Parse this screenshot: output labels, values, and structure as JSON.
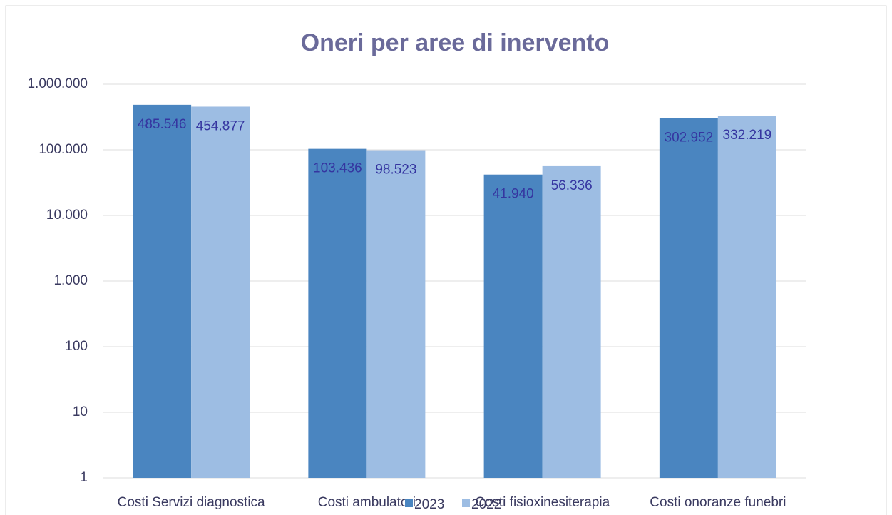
{
  "chart_data": {
    "type": "bar",
    "title": "Oneri per aree di inervento",
    "categories": [
      "Costi Servizi diagnostica",
      "Costi ambulatori",
      "Costi fisioxinesiterapia",
      "Costi onoranze funebri"
    ],
    "series": [
      {
        "name": "2023",
        "color": "#4a85c0",
        "values": [
          485546,
          103436,
          41940,
          302952
        ],
        "value_labels": [
          "485.546",
          "103.436",
          "41.940",
          "302.952"
        ]
      },
      {
        "name": "2022",
        "color": "#9dbde3",
        "values": [
          454877,
          98523,
          56336,
          332219
        ],
        "value_labels": [
          "454.877",
          "98.523",
          "56.336",
          "332.219"
        ]
      }
    ],
    "ylim": [
      1,
      1000000
    ],
    "yticks": [
      1,
      10,
      100,
      {
        "value": 1000,
        "label": "1.000"
      },
      {
        "value": 10000,
        "label": "10.000"
      },
      {
        "value": 100000,
        "label": "100.000"
      },
      {
        "value": 1000000,
        "label": "1.000.000"
      }
    ],
    "log_scale": true,
    "grid": true,
    "legend": "bottom"
  }
}
